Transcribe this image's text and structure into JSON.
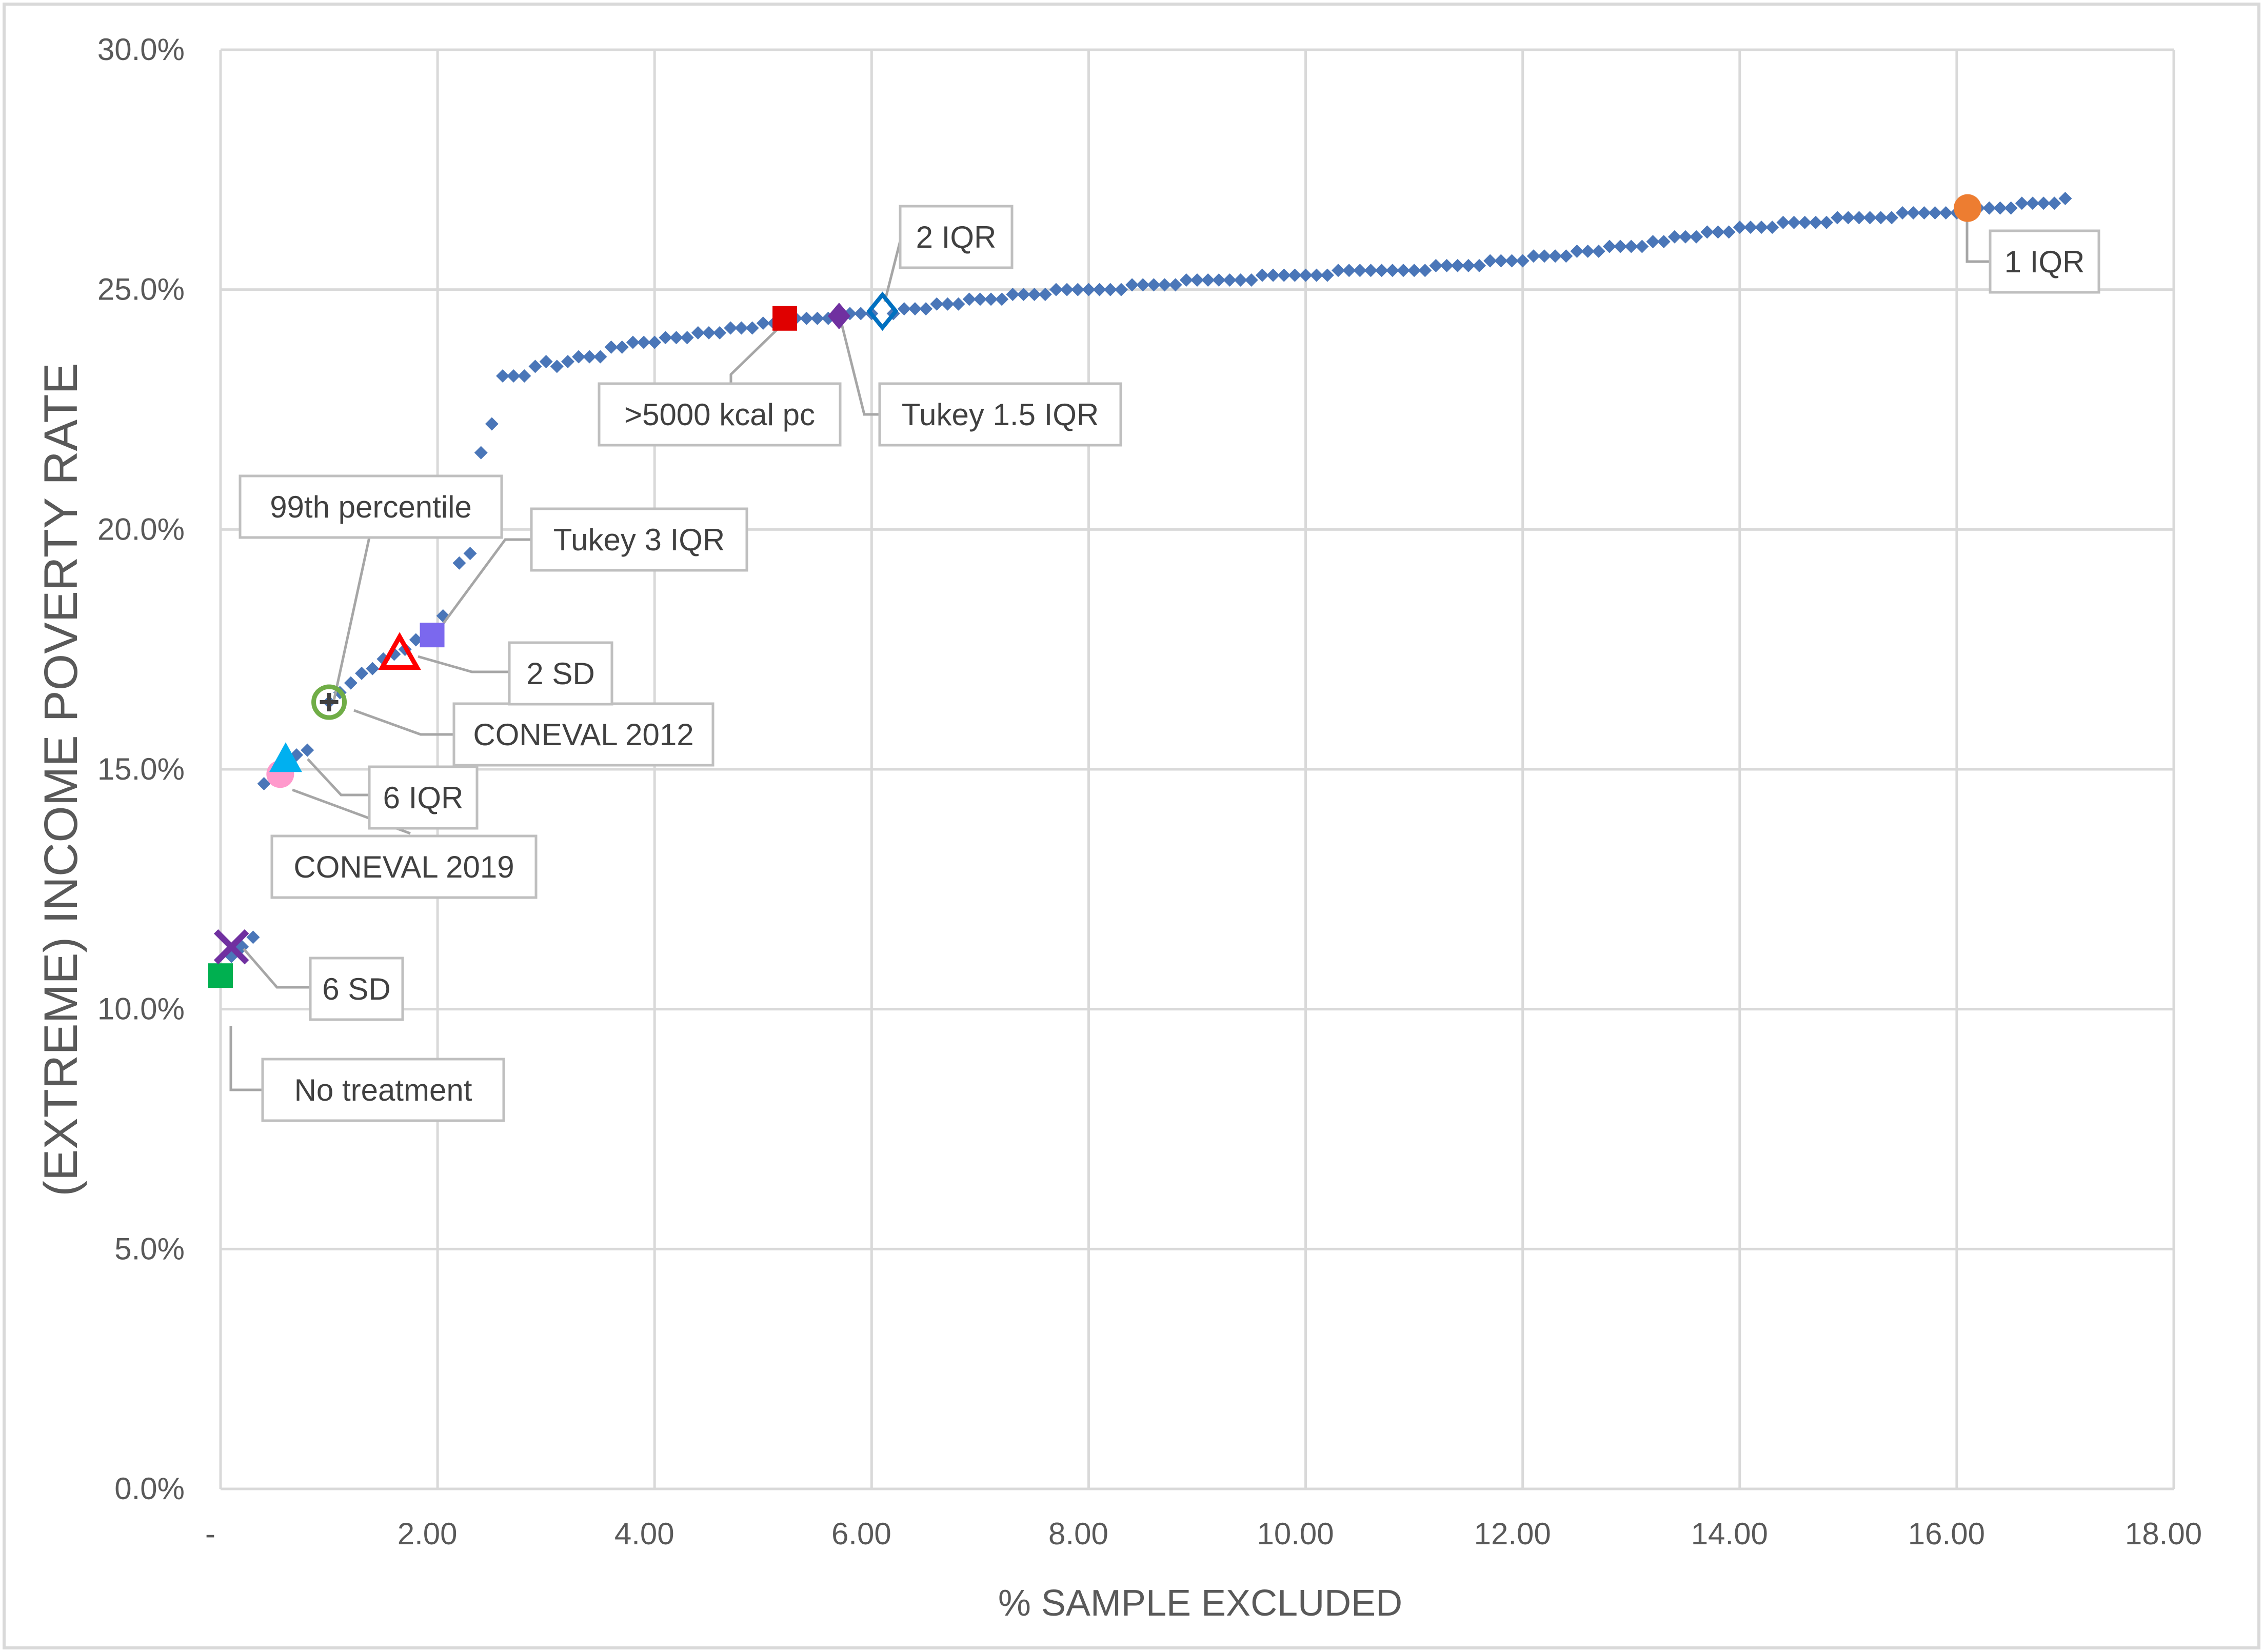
{
  "chart_data": {
    "type": "scatter",
    "title": "",
    "xlabel": "% SAMPLE EXCLUDED",
    "ylabel": "(EXTREME) INCOME POVERTY RATE",
    "xlim": [
      0,
      18
    ],
    "ylim": [
      0,
      30
    ],
    "x_ticks": [
      "-",
      "2.00",
      "4.00",
      "6.00",
      "8.00",
      "10.00",
      "12.00",
      "14.00",
      "16.00",
      "18.00"
    ],
    "y_ticks": [
      "0.0%",
      "5.0%",
      "10.0%",
      "15.0%",
      "20.0%",
      "25.0%",
      "30.0%"
    ],
    "grid": true,
    "legend": "none",
    "series": [
      {
        "marker": "diamond",
        "color": "#4a76b8",
        "points": [
          [
            0.1,
            11.1
          ],
          [
            0.2,
            11.3
          ],
          [
            0.3,
            11.5
          ],
          [
            0.4,
            14.7
          ],
          [
            0.5,
            14.9
          ],
          [
            0.6,
            15.1
          ],
          [
            0.7,
            15.3
          ],
          [
            0.8,
            15.4
          ],
          [
            1.0,
            16.4
          ],
          [
            1.1,
            16.6
          ],
          [
            1.2,
            16.8
          ],
          [
            1.3,
            17.0
          ],
          [
            1.4,
            17.1
          ],
          [
            1.5,
            17.3
          ],
          [
            1.6,
            17.4
          ],
          [
            1.7,
            17.5
          ],
          [
            1.8,
            17.7
          ],
          [
            1.9,
            17.8
          ],
          [
            2.05,
            18.2
          ],
          [
            2.2,
            19.3
          ],
          [
            2.3,
            19.5
          ],
          [
            2.4,
            21.6
          ],
          [
            2.5,
            22.2
          ],
          [
            2.6,
            23.2
          ],
          [
            2.7,
            23.2
          ],
          [
            2.8,
            23.2
          ],
          [
            2.9,
            23.4
          ],
          [
            3.0,
            23.5
          ],
          [
            3.1,
            23.4
          ],
          [
            3.2,
            23.5
          ],
          [
            3.3,
            23.6
          ],
          [
            3.4,
            23.6
          ],
          [
            3.5,
            23.6
          ],
          [
            3.6,
            23.8
          ],
          [
            3.7,
            23.8
          ],
          [
            3.8,
            23.9
          ],
          [
            3.9,
            23.9
          ],
          [
            4.0,
            23.9
          ],
          [
            4.1,
            24.0
          ],
          [
            4.2,
            24.0
          ],
          [
            4.3,
            24.0
          ],
          [
            4.4,
            24.1
          ],
          [
            4.5,
            24.1
          ],
          [
            4.6,
            24.1
          ],
          [
            4.7,
            24.2
          ],
          [
            4.8,
            24.2
          ],
          [
            4.9,
            24.2
          ],
          [
            5.0,
            24.3
          ],
          [
            5.1,
            24.3
          ],
          [
            5.3,
            24.4
          ],
          [
            5.4,
            24.4
          ],
          [
            5.5,
            24.4
          ],
          [
            5.6,
            24.4
          ],
          [
            5.8,
            24.5
          ],
          [
            5.9,
            24.5
          ],
          [
            6.0,
            24.5
          ],
          [
            6.2,
            24.5
          ],
          [
            6.3,
            24.6
          ],
          [
            6.4,
            24.6
          ],
          [
            6.5,
            24.6
          ],
          [
            6.6,
            24.7
          ],
          [
            6.7,
            24.7
          ],
          [
            6.8,
            24.7
          ],
          [
            6.9,
            24.8
          ],
          [
            7.0,
            24.8
          ],
          [
            7.1,
            24.8
          ],
          [
            7.2,
            24.8
          ],
          [
            7.3,
            24.9
          ],
          [
            7.4,
            24.9
          ],
          [
            7.5,
            24.9
          ],
          [
            7.6,
            24.9
          ],
          [
            7.7,
            25.0
          ],
          [
            7.8,
            25.0
          ],
          [
            7.9,
            25.0
          ],
          [
            8.0,
            25.0
          ],
          [
            8.1,
            25.0
          ],
          [
            8.2,
            25.0
          ],
          [
            8.3,
            25.0
          ],
          [
            8.4,
            25.1
          ],
          [
            8.5,
            25.1
          ],
          [
            8.6,
            25.1
          ],
          [
            8.7,
            25.1
          ],
          [
            8.8,
            25.1
          ],
          [
            8.9,
            25.2
          ],
          [
            9.0,
            25.2
          ],
          [
            9.1,
            25.2
          ],
          [
            9.2,
            25.2
          ],
          [
            9.3,
            25.2
          ],
          [
            9.4,
            25.2
          ],
          [
            9.5,
            25.2
          ],
          [
            9.6,
            25.3
          ],
          [
            9.7,
            25.3
          ],
          [
            9.8,
            25.3
          ],
          [
            9.9,
            25.3
          ],
          [
            10.0,
            25.3
          ],
          [
            10.1,
            25.3
          ],
          [
            10.2,
            25.3
          ],
          [
            10.3,
            25.4
          ],
          [
            10.4,
            25.4
          ],
          [
            10.5,
            25.4
          ],
          [
            10.6,
            25.4
          ],
          [
            10.7,
            25.4
          ],
          [
            10.8,
            25.4
          ],
          [
            10.9,
            25.4
          ],
          [
            11.0,
            25.4
          ],
          [
            11.1,
            25.4
          ],
          [
            11.2,
            25.5
          ],
          [
            11.3,
            25.5
          ],
          [
            11.4,
            25.5
          ],
          [
            11.5,
            25.5
          ],
          [
            11.6,
            25.5
          ],
          [
            11.7,
            25.6
          ],
          [
            11.8,
            25.6
          ],
          [
            11.9,
            25.6
          ],
          [
            12.0,
            25.6
          ],
          [
            12.1,
            25.7
          ],
          [
            12.2,
            25.7
          ],
          [
            12.3,
            25.7
          ],
          [
            12.4,
            25.7
          ],
          [
            12.5,
            25.8
          ],
          [
            12.6,
            25.8
          ],
          [
            12.7,
            25.8
          ],
          [
            12.8,
            25.9
          ],
          [
            12.9,
            25.9
          ],
          [
            13.0,
            25.9
          ],
          [
            13.1,
            25.9
          ],
          [
            13.2,
            26.0
          ],
          [
            13.3,
            26.0
          ],
          [
            13.4,
            26.1
          ],
          [
            13.5,
            26.1
          ],
          [
            13.6,
            26.1
          ],
          [
            13.7,
            26.2
          ],
          [
            13.8,
            26.2
          ],
          [
            13.9,
            26.2
          ],
          [
            14.0,
            26.3
          ],
          [
            14.1,
            26.3
          ],
          [
            14.2,
            26.3
          ],
          [
            14.3,
            26.3
          ],
          [
            14.4,
            26.4
          ],
          [
            14.5,
            26.4
          ],
          [
            14.6,
            26.4
          ],
          [
            14.7,
            26.4
          ],
          [
            14.8,
            26.4
          ],
          [
            14.9,
            26.5
          ],
          [
            15.0,
            26.5
          ],
          [
            15.1,
            26.5
          ],
          [
            15.2,
            26.5
          ],
          [
            15.3,
            26.5
          ],
          [
            15.4,
            26.5
          ],
          [
            15.5,
            26.6
          ],
          [
            15.6,
            26.6
          ],
          [
            15.7,
            26.6
          ],
          [
            15.8,
            26.6
          ],
          [
            15.9,
            26.6
          ],
          [
            16.0,
            26.6
          ],
          [
            16.2,
            26.7
          ],
          [
            16.3,
            26.7
          ],
          [
            16.4,
            26.7
          ],
          [
            16.5,
            26.7
          ],
          [
            16.6,
            26.8
          ],
          [
            16.7,
            26.8
          ],
          [
            16.8,
            26.8
          ],
          [
            16.9,
            26.8
          ],
          [
            17.0,
            26.9
          ]
        ]
      }
    ],
    "annotations": [
      {
        "label": "No treatment",
        "x": 0.0,
        "y": 10.7,
        "marker": "square",
        "color": "#00b050"
      },
      {
        "label": "6 SD",
        "x": 0.1,
        "y": 11.3,
        "marker": "x",
        "color": "#7030a0"
      },
      {
        "label": "CONEVAL 2019",
        "x": 0.55,
        "y": 14.9,
        "marker": "circle",
        "color": "#ff99cc"
      },
      {
        "label": "6 IQR",
        "x": 0.6,
        "y": 15.2,
        "marker": "triangle",
        "color": "#00b0f0"
      },
      {
        "label": "CONEVAL 2012",
        "x": 1.0,
        "y": 16.4,
        "marker": "circle-open",
        "color": "#70ad47"
      },
      {
        "label": "99th percentile",
        "x": 1.0,
        "y": 16.4,
        "marker": "plus",
        "color": "#404040"
      },
      {
        "label": "2 SD",
        "x": 1.65,
        "y": 17.4,
        "marker": "triangle-open",
        "color": "#ff0000"
      },
      {
        "label": "Tukey 3 IQR",
        "x": 1.95,
        "y": 17.8,
        "marker": "square",
        "color": "#7b68ee"
      },
      {
        "label": ">5000 kcal pc",
        "x": 5.2,
        "y": 24.4,
        "marker": "square",
        "color": "#e00000"
      },
      {
        "label": "Tukey 1.5 IQR",
        "x": 5.7,
        "y": 24.45,
        "marker": "diamond",
        "color": "#7030a0"
      },
      {
        "label": "2 IQR",
        "x": 6.1,
        "y": 24.55,
        "marker": "diamond-open",
        "color": "#0070c0"
      },
      {
        "label": "1 IQR",
        "x": 16.1,
        "y": 26.7,
        "marker": "circle",
        "color": "#ed7d31"
      }
    ]
  }
}
